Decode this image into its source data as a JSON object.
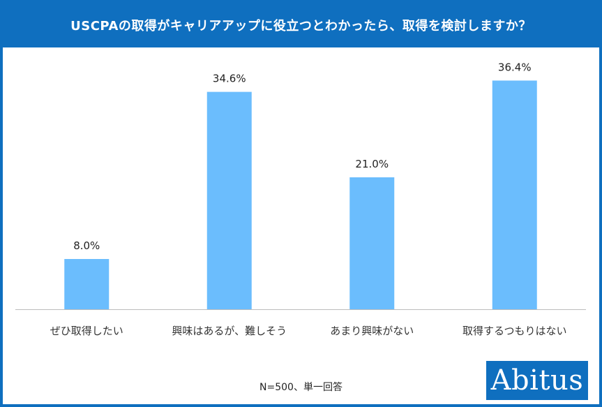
{
  "header": {
    "title": "USCPAの取得がキャリアアップに役立つとわかったら、取得を検討しますか？"
  },
  "colors": {
    "brand": "#0f6fbf",
    "bar": "#6bbdfd",
    "axis": "#bdbdbd"
  },
  "footer": {
    "note": "N=500、単一回答",
    "logo_text": "Abitus"
  },
  "chart_data": {
    "type": "bar",
    "title": "USCPAの取得がキャリアアップに役立つとわかったら、取得を検討しますか？",
    "categories": [
      "ぜひ取得したい",
      "興味はあるが、難しそう",
      "あまり興味がない",
      "取得するつもりはない"
    ],
    "values": [
      8.0,
      34.6,
      21.0,
      36.4
    ],
    "labels": [
      "8.0%",
      "34.6%",
      "21.0%",
      "36.4%"
    ],
    "unit": "%",
    "xlabel": "",
    "ylabel": "",
    "ylim": [
      0,
      42
    ]
  }
}
